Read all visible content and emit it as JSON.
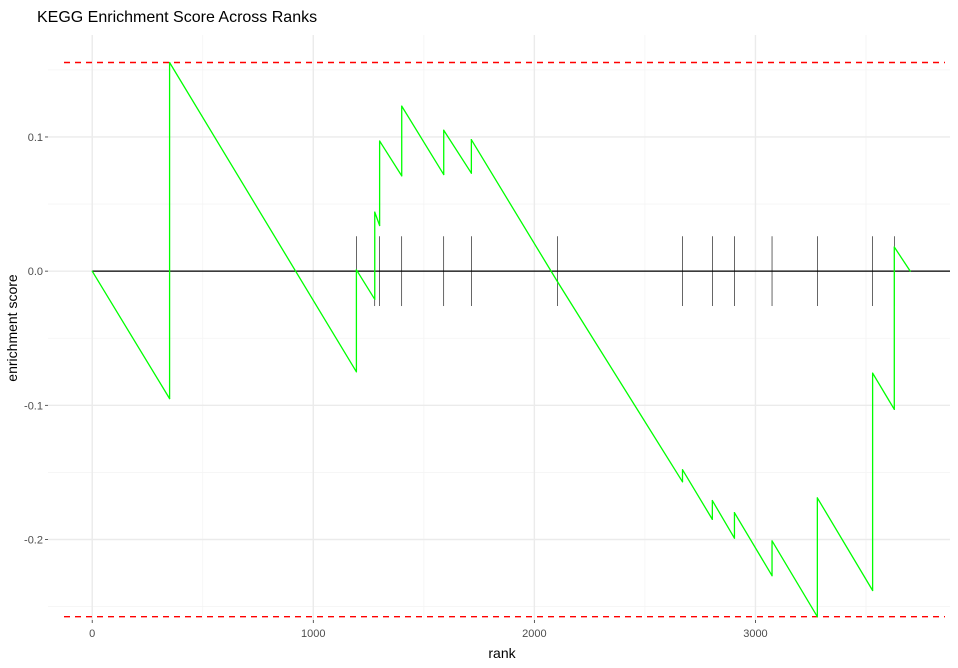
{
  "chart_data": {
    "type": "line",
    "title": "KEGG Enrichment Score Across Ranks",
    "xlabel": "rank",
    "ylabel": "enrichment score",
    "xlim": [
      -200,
      3880
    ],
    "ylim": [
      -0.26,
      0.176
    ],
    "x_ticks": [
      0,
      1000,
      2000,
      3000
    ],
    "x_tick_labels": [
      "0",
      "1000",
      "2000",
      "3000"
    ],
    "y_ticks": [
      -0.2,
      -0.1,
      0.0,
      0.1
    ],
    "y_tick_labels": [
      "-0.2",
      "-0.1",
      "0.0",
      "0.1"
    ],
    "grid": true,
    "threshold_lines": [
      0.1555,
      -0.2575
    ],
    "zero_line": 0.0,
    "hit_ranks": [
      350,
      1195,
      1278,
      1300,
      1400,
      1590,
      1715,
      2105,
      2670,
      2805,
      2905,
      3075,
      3280,
      3530,
      3628
    ],
    "series": [
      {
        "name": "running enrichment score",
        "color": "#00ff00",
        "x": [
          0,
          350,
          350,
          1195,
          1195,
          1278,
          1278,
          1300,
          1300,
          1400,
          1400,
          1590,
          1590,
          1715,
          1715,
          2105,
          2105,
          2670,
          2670,
          2805,
          2805,
          2905,
          2905,
          3075,
          3075,
          3280,
          3280,
          3530,
          3530,
          3628,
          3628,
          3700
        ],
        "values": [
          0.0,
          -0.095,
          0.1555,
          -0.075,
          0.001,
          -0.021,
          0.044,
          0.034,
          0.097,
          0.071,
          0.123,
          0.072,
          0.105,
          0.073,
          0.098,
          -0.008,
          -0.008,
          -0.157,
          -0.148,
          -0.185,
          -0.171,
          -0.199,
          -0.18,
          -0.227,
          -0.201,
          -0.2575,
          -0.169,
          -0.238,
          -0.076,
          -0.103,
          0.018,
          0.0
        ]
      }
    ]
  },
  "colors": {
    "line": "#00ff00",
    "threshold": "#ff0000",
    "grid": "#ebebeb",
    "zero_line": "#000000",
    "hit_tick": "#000000"
  }
}
